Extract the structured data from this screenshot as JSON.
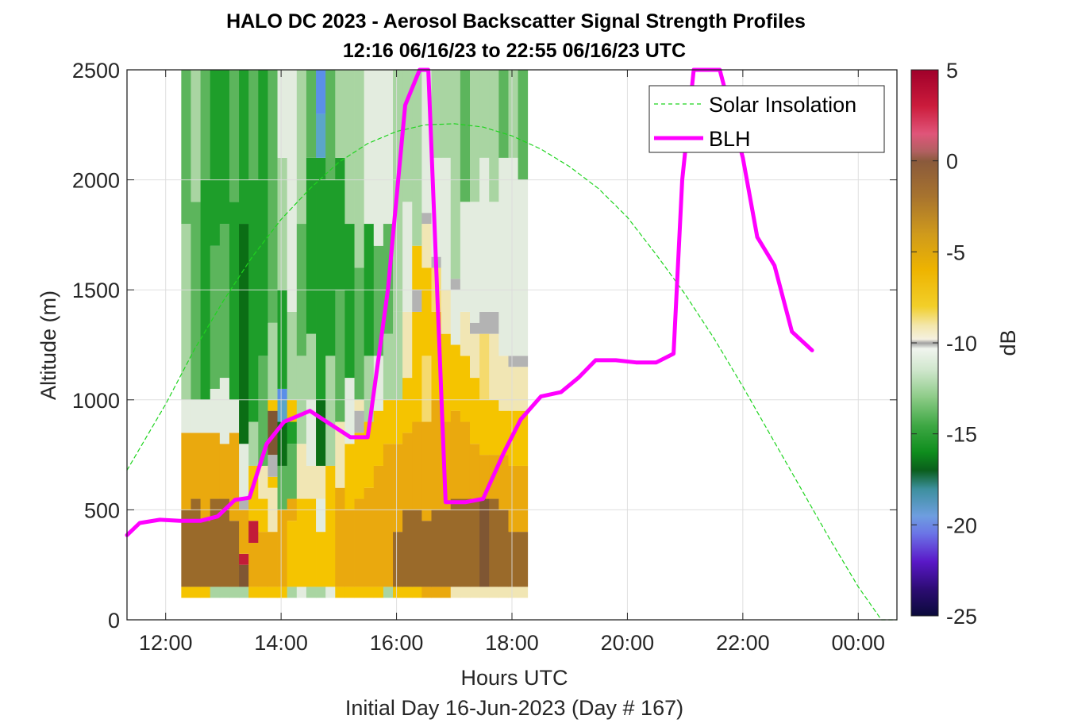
{
  "chart_data": {
    "type": "heatmap",
    "title": "HALO DC 2023 - Aerosol Backscatter Signal Strength Profiles",
    "subtitle": "12:16 06/16/23 to 22:55 06/16/23  UTC",
    "xlabel": "Hours UTC",
    "sublabel": "Initial Day 16-Jun-2023 (Day # 167)",
    "ylabel": "Altitude (m)",
    "colorbar_label": "dB",
    "xlim": [
      11.33,
      24.67
    ],
    "ylim": [
      0,
      2500
    ],
    "x_ticks": [
      {
        "value": 12,
        "label": "12:00"
      },
      {
        "value": 14,
        "label": "14:00"
      },
      {
        "value": 16,
        "label": "16:00"
      },
      {
        "value": 18,
        "label": "18:00"
      },
      {
        "value": 20,
        "label": "20:00"
      },
      {
        "value": 22,
        "label": "22:00"
      },
      {
        "value": 24,
        "label": "00:00"
      }
    ],
    "y_ticks": [
      {
        "value": 0,
        "label": "0"
      },
      {
        "value": 500,
        "label": "500"
      },
      {
        "value": 1000,
        "label": "1000"
      },
      {
        "value": 1500,
        "label": "1500"
      },
      {
        "value": 2000,
        "label": "2000"
      },
      {
        "value": 2500,
        "label": "2500"
      }
    ],
    "colorbar_range": [
      -25,
      5
    ],
    "colorbar_ticks": [
      {
        "value": 5,
        "label": "5"
      },
      {
        "value": 0,
        "label": "0"
      },
      {
        "value": -5,
        "label": "-5"
      },
      {
        "value": -10,
        "label": "-10"
      },
      {
        "value": -15,
        "label": "-15"
      },
      {
        "value": -20,
        "label": "-20"
      },
      {
        "value": -25,
        "label": "-25"
      }
    ],
    "grid": true,
    "legend_position": "top-right",
    "series": [
      {
        "name": "Solar Insolation",
        "style": "dashed",
        "color": "#1fd41f",
        "x": [
          11.33,
          12.0,
          12.5,
          13.0,
          13.5,
          14.0,
          14.5,
          15.0,
          15.5,
          16.0,
          16.5,
          17.0,
          17.5,
          18.0,
          18.5,
          19.0,
          19.5,
          20.0,
          20.5,
          21.0,
          21.5,
          22.0,
          22.5,
          23.0,
          23.5,
          24.0,
          24.4,
          24.67
        ],
        "y": [
          680,
          980,
          1230,
          1450,
          1650,
          1820,
          1960,
          2080,
          2165,
          2220,
          2250,
          2255,
          2240,
          2200,
          2140,
          2060,
          1960,
          1830,
          1660,
          1480,
          1280,
          1060,
          830,
          600,
          370,
          150,
          0,
          0
        ]
      },
      {
        "name": "BLH",
        "style": "solid",
        "color": "#ff00ff",
        "x": [
          11.33,
          11.55,
          11.9,
          12.25,
          12.6,
          12.9,
          13.2,
          13.45,
          13.75,
          14.05,
          14.5,
          15.2,
          15.5,
          15.85,
          16.15,
          16.4,
          16.55,
          16.85,
          17.2,
          17.5,
          17.85,
          18.15,
          18.5,
          18.85,
          19.15,
          19.45,
          19.8,
          20.15,
          20.5,
          20.8,
          20.95,
          21.15,
          21.6,
          22.0,
          22.25,
          22.55,
          22.85,
          23.2
        ],
        "y": [
          385,
          440,
          455,
          450,
          450,
          470,
          545,
          555,
          800,
          900,
          950,
          830,
          830,
          1500,
          2340,
          2520,
          2520,
          535,
          535,
          550,
          755,
          910,
          1015,
          1035,
          1100,
          1180,
          1180,
          1170,
          1170,
          1210,
          2000,
          2620,
          2550,
          2100,
          1740,
          1610,
          1310,
          1225
        ]
      }
    ],
    "heatmap": {
      "x_start": 12.27,
      "x_step": 0.1667,
      "y_start": 100,
      "y_step": 50,
      "columns": [
        {
          "col": 0,
          "layers": [
            [
              "gold",
              0,
              1
            ],
            [
              "olive",
              1,
              8
            ],
            [
              "amber",
              8,
              15
            ],
            [
              "white-green",
              15,
              19
            ],
            [
              "light-green",
              19,
              34
            ],
            [
              "mid-green",
              34,
              48
            ]
          ]
        },
        {
          "col": 1,
          "layers": [
            [
              "gold",
              0,
              1
            ],
            [
              "olive",
              1,
              9
            ],
            [
              "amber",
              9,
              15
            ],
            [
              "white-green",
              15,
              18
            ],
            [
              "mid-green",
              18,
              36
            ],
            [
              "light-green",
              36,
              48
            ]
          ]
        },
        {
          "col": 2,
          "layers": [
            [
              "gold",
              0,
              1
            ],
            [
              "olive",
              1,
              7
            ],
            [
              "amber",
              7,
              15
            ],
            [
              "white-green",
              15,
              18
            ],
            [
              "mid-green",
              18,
              38
            ],
            [
              "green",
              38,
              48
            ]
          ]
        }
      ]
    }
  }
}
